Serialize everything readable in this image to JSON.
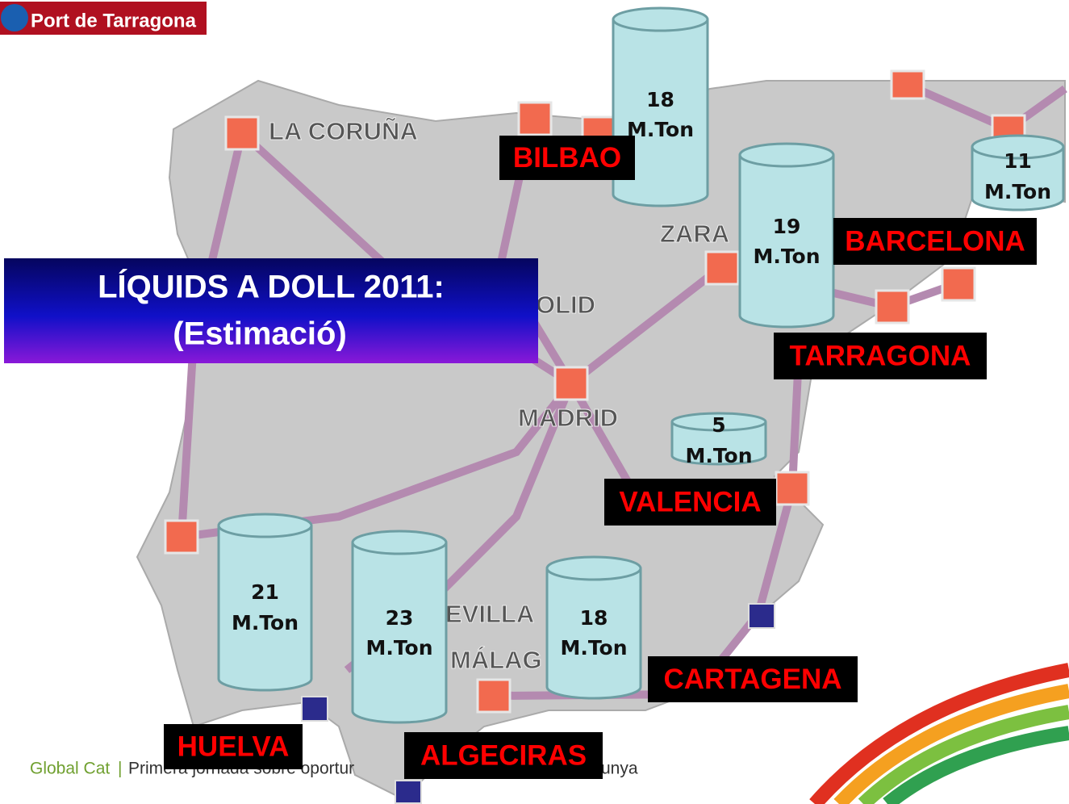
{
  "logo": "Port de Tarragona",
  "title": {
    "line1": "LÍQUIDS A DOLL 2011:",
    "line2": "(Estimació)"
  },
  "map_labels": [
    "LA CORUÑA",
    "ZARA",
    "OLID",
    "MADRID",
    "EVILLA",
    "MÁLAG"
  ],
  "cylinders": [
    {
      "value": "18",
      "unit": "M.Ton"
    },
    {
      "value": "11",
      "unit": "M.Ton"
    },
    {
      "value": "19",
      "unit": "M.Ton"
    },
    {
      "value": "5",
      "unit": "M.Ton"
    },
    {
      "value": "21",
      "unit": "M.Ton"
    },
    {
      "value": "23",
      "unit": "M.Ton"
    },
    {
      "value": "18",
      "unit": "M.Ton"
    }
  ],
  "port_labels": [
    "BILBAO",
    "BARCELONA",
    "TARRAGONA",
    "VALENCIA",
    "CARTAGENA",
    "HUELVA",
    "ALGECIRAS"
  ],
  "footer": {
    "brand": "Global Cat",
    "separator": "|",
    "text": "Primera jornada sobre oportur",
    "tail": "unya"
  }
}
